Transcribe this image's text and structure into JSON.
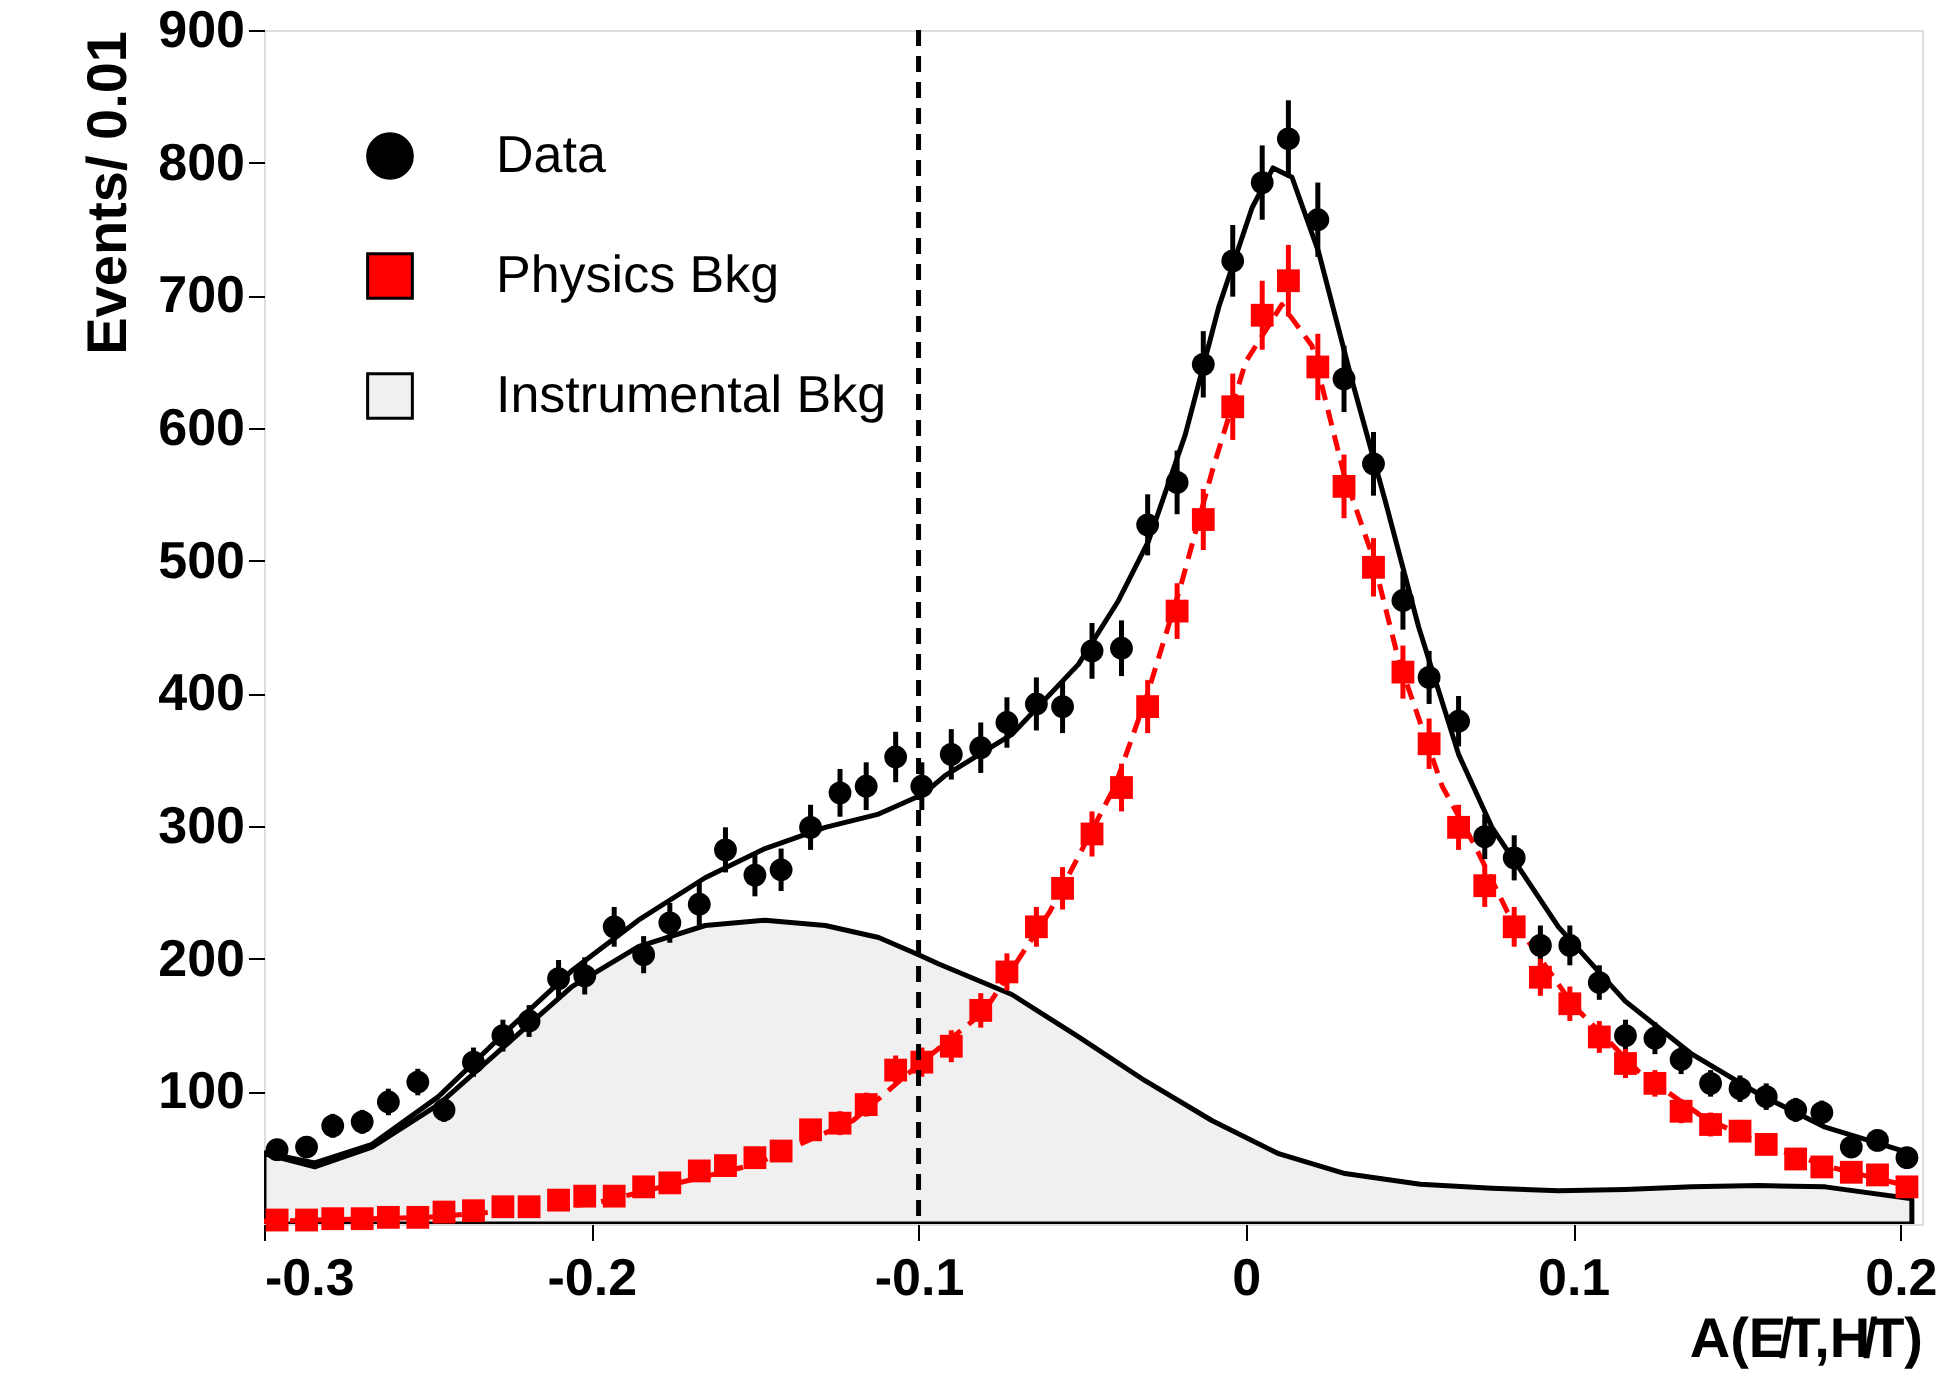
{
  "chart_data": {
    "type": "scatter",
    "xlabel": "A(E̸T,H̸T)",
    "ylabel": "Events/ 0.01",
    "xlim": [
      -0.3,
      0.2066
    ],
    "ylim": [
      0,
      900
    ],
    "xticks": [
      -0.3,
      -0.2,
      -0.1,
      0,
      0.1,
      0.2
    ],
    "yticks": [
      100,
      200,
      300,
      400,
      500,
      600,
      700,
      800,
      900
    ],
    "grid": false,
    "legend": "top left",
    "x": [
      -0.296,
      -0.287,
      -0.279,
      -0.27,
      -0.262,
      -0.253,
      -0.245,
      -0.236,
      -0.227,
      -0.219,
      -0.21,
      -0.202,
      -0.193,
      -0.184,
      -0.176,
      -0.167,
      -0.159,
      -0.15,
      -0.142,
      -0.133,
      -0.124,
      -0.116,
      -0.107,
      -0.099,
      -0.09,
      -0.081,
      -0.073,
      -0.064,
      -0.056,
      -0.047,
      -0.038,
      -0.03,
      -0.021,
      -0.013,
      -0.004,
      0.005,
      0.013,
      0.022,
      0.03,
      0.039,
      0.048,
      0.056,
      0.065,
      0.073,
      0.082,
      0.09,
      0.099,
      0.108,
      0.116,
      0.125,
      0.133,
      0.142,
      0.151,
      0.159,
      0.168,
      0.176,
      0.185,
      0.193,
      0.202
    ],
    "series": [
      {
        "name": "Instrumental Bkg",
        "type": "area",
        "color": "#f0f0f0",
        "x": [
          -0.3,
          -0.2845,
          -0.267,
          -0.2467,
          -0.2265,
          -0.2059,
          -0.1856,
          -0.1652,
          -0.1469,
          -0.1285,
          -0.1122,
          -0.1,
          -0.0938,
          -0.0715,
          -0.0511,
          -0.0308,
          -0.0104,
          0.01,
          0.0303,
          0.0533,
          0.0752,
          0.0955,
          0.1159,
          0.1363,
          0.1567,
          0.177,
          0.2035
        ],
        "values": [
          53,
          43,
          58,
          90,
          134,
          179,
          209,
          225,
          229,
          225,
          216,
          203,
          196,
          173,
          141,
          108,
          78,
          53,
          38,
          30,
          27,
          25,
          26,
          28,
          29,
          28,
          19
        ]
      },
      {
        "type": "line",
        "color": "#000000",
        "line_style": "solid",
        "x": [
          -0.3,
          -0.2845,
          -0.267,
          -0.2467,
          -0.2265,
          -0.2059,
          -0.1856,
          -0.1652,
          -0.1469,
          -0.1285,
          -0.1122,
          -0.0986,
          -0.0919,
          -0.0715,
          -0.0511,
          -0.0389,
          -0.0297,
          -0.0185,
          -0.0083,
          0.0019,
          0.0083,
          0.0141,
          0.0222,
          0.0324,
          0.0426,
          0.0528,
          0.065,
          0.0752,
          0.0955,
          0.1159,
          0.1363,
          0.1567,
          0.177,
          0.2035
        ],
        "values": [
          54,
          46,
          60,
          96,
          144,
          191,
          229,
          261,
          283,
          299,
          309,
          324,
          338,
          369,
          422,
          470,
          515,
          595,
          691,
          766,
          796,
          789,
          733,
          636,
          545,
          450,
          354,
          299,
          224,
          168,
          128,
          98,
          73,
          53
        ]
      },
      {
        "type": "line",
        "color": "#ff0000",
        "line_style": "dashed",
        "x": [
          -0.3,
          -0.25,
          -0.2,
          -0.15,
          -0.12,
          -0.1,
          -0.08,
          -0.06,
          -0.04,
          -0.03,
          -0.02,
          -0.01,
          0,
          0.011,
          0.0202,
          0.03,
          0.0385,
          0.0467,
          0.06,
          0.07,
          0.08,
          0.1,
          0.12,
          0.14,
          0.16,
          0.18,
          0.2,
          0.2035
        ],
        "values": [
          2,
          5,
          15,
          45,
          78,
          120,
          160,
          235,
          330,
          400,
          480,
          570,
          650,
          693,
          662,
          565,
          505,
          425,
          330,
          285,
          235,
          165,
          115,
          80,
          58,
          42,
          30,
          28
        ]
      },
      {
        "name": "Data",
        "color": "#000000",
        "marker": "circle",
        "values": [
          56,
          58,
          74,
          77,
          92,
          107,
          86,
          122,
          142,
          153,
          185,
          187,
          224,
          203,
          227,
          241,
          282,
          263,
          267,
          299,
          325,
          330,
          352,
          330,
          354,
          359,
          378,
          392,
          390,
          432,
          434,
          527,
          559,
          648,
          726,
          785,
          818,
          757,
          637,
          573,
          470,
          412,
          379,
          292,
          276,
          210,
          210,
          182,
          142,
          140,
          124,
          106,
          102,
          96,
          86,
          84,
          58,
          63,
          50
        ],
        "errors": [
          7,
          8,
          9,
          9,
          10,
          10,
          9,
          11,
          12,
          12,
          14,
          14,
          15,
          14,
          15,
          16,
          17,
          16,
          16,
          17,
          18,
          18,
          19,
          18,
          19,
          19,
          19,
          20,
          20,
          21,
          21,
          23,
          24,
          25,
          27,
          28,
          29,
          28,
          25,
          24,
          22,
          20,
          19,
          17,
          17,
          15,
          15,
          13,
          12,
          12,
          11,
          10,
          10,
          10,
          9,
          9,
          8,
          8,
          7
        ]
      },
      {
        "name": "Physics Bkg",
        "color": "#ff0000",
        "marker": "square",
        "values": [
          3,
          3,
          4,
          4,
          5,
          5,
          9,
          10,
          13,
          13,
          18,
          21,
          21,
          28,
          31,
          40,
          44,
          50,
          55,
          71,
          76,
          90,
          116,
          122,
          134,
          161,
          190,
          224,
          253,
          294,
          329,
          390,
          462,
          531,
          616,
          685,
          711,
          646,
          556,
          495,
          416,
          362,
          299,
          255,
          224,
          186,
          166,
          141,
          121,
          106,
          85,
          75,
          70,
          60,
          49,
          43,
          39,
          37,
          28
        ],
        "errors": [
          2,
          2,
          2,
          2,
          2,
          2,
          3,
          3,
          4,
          4,
          4,
          5,
          5,
          5,
          6,
          6,
          7,
          7,
          7,
          8,
          9,
          9,
          11,
          11,
          12,
          13,
          14,
          15,
          16,
          17,
          18,
          20,
          21,
          23,
          25,
          26,
          27,
          25,
          24,
          22,
          20,
          19,
          17,
          16,
          15,
          14,
          13,
          12,
          11,
          10,
          9,
          9,
          8,
          8,
          7,
          7,
          6,
          6,
          5
        ]
      }
    ],
    "ref_lines": [
      {
        "axis": "x",
        "value": -0.1,
        "color": "#000000",
        "line_style": "dashed"
      }
    ]
  }
}
